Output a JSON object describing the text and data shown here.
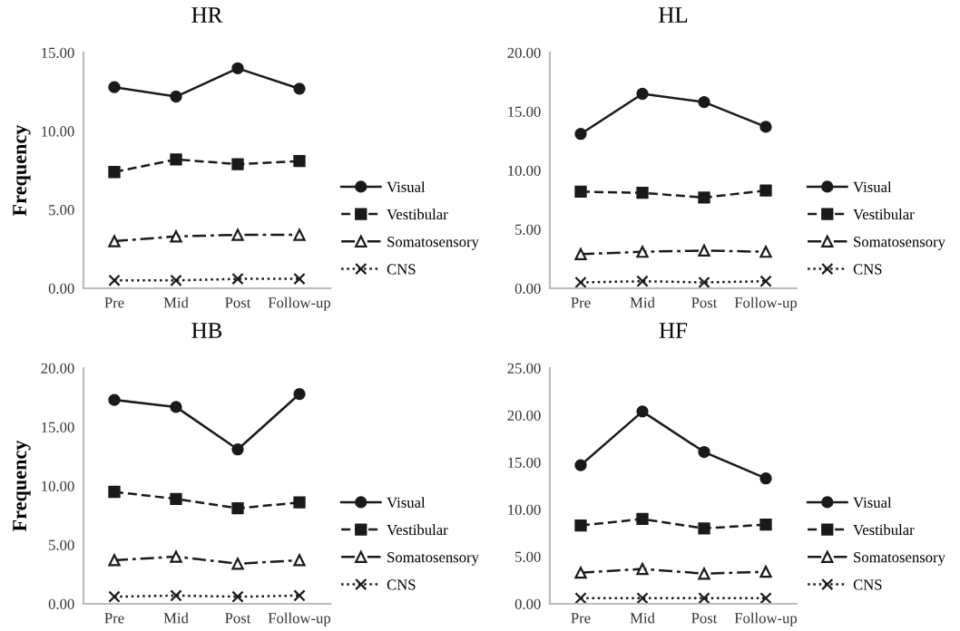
{
  "chart_data": [
    {
      "type": "line",
      "title": "HR",
      "ylabel": "Frequency",
      "categories": [
        "Pre",
        "Mid",
        "Post",
        "Follow-up"
      ],
      "ylim": [
        0,
        15
      ],
      "yticks": [
        {
          "value": 0,
          "label": "0.00"
        },
        {
          "value": 5,
          "label": "5.00"
        },
        {
          "value": 10,
          "label": "10.00"
        },
        {
          "value": 15,
          "label": "15.00"
        }
      ],
      "grid": false,
      "legend": "right",
      "series": [
        {
          "name": "Visual",
          "color": "#1a1a1a",
          "marker": "circle",
          "line_style": "solid",
          "values": [
            12.8,
            12.2,
            14.0,
            12.7
          ]
        },
        {
          "name": "Vestibular",
          "color": "#1a1a1a",
          "marker": "square",
          "line_style": "dashed",
          "values": [
            7.4,
            8.2,
            7.9,
            8.1
          ]
        },
        {
          "name": "Somatosensory",
          "color": "#1a1a1a",
          "marker": "triangle",
          "line_style": "dashdot",
          "values": [
            3.0,
            3.3,
            3.4,
            3.4
          ]
        },
        {
          "name": "CNS",
          "color": "#1a1a1a",
          "marker": "cross",
          "line_style": "dotted",
          "values": [
            0.5,
            0.5,
            0.6,
            0.6
          ]
        }
      ]
    },
    {
      "type": "line",
      "title": "HL",
      "categories": [
        "Pre",
        "Mid",
        "Post",
        "Follow-up"
      ],
      "ylim": [
        0,
        20
      ],
      "yticks": [
        {
          "value": 0,
          "label": "0.00"
        },
        {
          "value": 5,
          "label": "5.00"
        },
        {
          "value": 10,
          "label": "10.00"
        },
        {
          "value": 15,
          "label": "15.00"
        },
        {
          "value": 20,
          "label": "20.00"
        }
      ],
      "grid": false,
      "legend": "right",
      "series": [
        {
          "name": "Visual",
          "color": "#1a1a1a",
          "marker": "circle",
          "line_style": "solid",
          "values": [
            13.1,
            16.5,
            15.8,
            13.7
          ]
        },
        {
          "name": "Vestibular",
          "color": "#1a1a1a",
          "marker": "square",
          "line_style": "dashed",
          "values": [
            8.2,
            8.1,
            7.7,
            8.3
          ]
        },
        {
          "name": "Somatosensory",
          "color": "#1a1a1a",
          "marker": "triangle",
          "line_style": "dashdot",
          "values": [
            2.9,
            3.1,
            3.2,
            3.1
          ]
        },
        {
          "name": "CNS",
          "color": "#1a1a1a",
          "marker": "cross",
          "line_style": "dotted",
          "values": [
            0.5,
            0.6,
            0.5,
            0.6
          ]
        }
      ]
    },
    {
      "type": "line",
      "title": "HB",
      "ylabel": "Frequency",
      "categories": [
        "Pre",
        "Mid",
        "Post",
        "Follow-up"
      ],
      "ylim": [
        0,
        20
      ],
      "yticks": [
        {
          "value": 0,
          "label": "0.00"
        },
        {
          "value": 5,
          "label": "5.00"
        },
        {
          "value": 10,
          "label": "10.00"
        },
        {
          "value": 15,
          "label": "15.00"
        },
        {
          "value": 20,
          "label": "20.00"
        }
      ],
      "grid": false,
      "legend": "right",
      "series": [
        {
          "name": "Visual",
          "color": "#1a1a1a",
          "marker": "circle",
          "line_style": "solid",
          "values": [
            17.3,
            16.7,
            13.1,
            17.8
          ]
        },
        {
          "name": "Vestibular",
          "color": "#1a1a1a",
          "marker": "square",
          "line_style": "dashed",
          "values": [
            9.5,
            8.9,
            8.1,
            8.6
          ]
        },
        {
          "name": "Somatosensory",
          "color": "#1a1a1a",
          "marker": "triangle",
          "line_style": "dashdot",
          "values": [
            3.7,
            4.0,
            3.4,
            3.7
          ]
        },
        {
          "name": "CNS",
          "color": "#1a1a1a",
          "marker": "cross",
          "line_style": "dotted",
          "values": [
            0.6,
            0.7,
            0.6,
            0.7
          ]
        }
      ]
    },
    {
      "type": "line",
      "title": "HF",
      "categories": [
        "Pre",
        "Mid",
        "Post",
        "Follow-up"
      ],
      "ylim": [
        0,
        25
      ],
      "yticks": [
        {
          "value": 0,
          "label": "0.00"
        },
        {
          "value": 5,
          "label": "5.00"
        },
        {
          "value": 10,
          "label": "10.00"
        },
        {
          "value": 15,
          "label": "15.00"
        },
        {
          "value": 20,
          "label": "20.00"
        },
        {
          "value": 25,
          "label": "25.00"
        }
      ],
      "grid": false,
      "legend": "right",
      "series": [
        {
          "name": "Visual",
          "color": "#1a1a1a",
          "marker": "circle",
          "line_style": "solid",
          "values": [
            14.7,
            20.4,
            16.1,
            13.3
          ]
        },
        {
          "name": "Vestibular",
          "color": "#1a1a1a",
          "marker": "square",
          "line_style": "dashed",
          "values": [
            8.3,
            9.0,
            8.0,
            8.4
          ]
        },
        {
          "name": "Somatosensory",
          "color": "#1a1a1a",
          "marker": "triangle",
          "line_style": "dashdot",
          "values": [
            3.3,
            3.7,
            3.2,
            3.4
          ]
        },
        {
          "name": "CNS",
          "color": "#1a1a1a",
          "marker": "cross",
          "line_style": "dotted",
          "values": [
            0.6,
            0.6,
            0.6,
            0.6
          ]
        }
      ]
    }
  ]
}
